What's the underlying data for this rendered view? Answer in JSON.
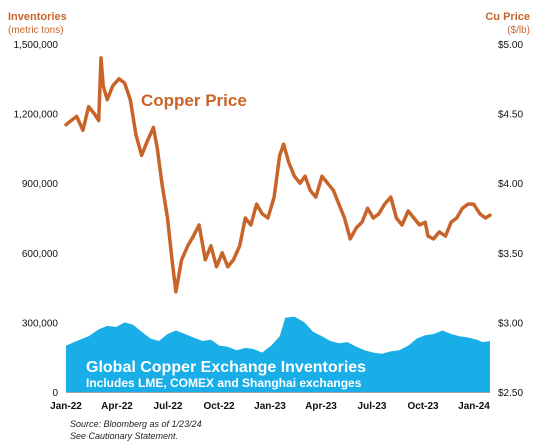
{
  "chart_data": {
    "type": "line",
    "left_axis": {
      "title": "Inventories",
      "subtitle": "(metric tons)",
      "ticks": [
        0,
        300000,
        600000,
        900000,
        1200000,
        1500000
      ],
      "tick_labels": [
        "0",
        "300,000",
        "600,000",
        "900,000",
        "1,200,000",
        "1,500,000"
      ],
      "range": [
        0,
        1500000
      ]
    },
    "right_axis": {
      "title": "Cu Price",
      "subtitle": "($/lb)",
      "ticks": [
        2.5,
        3.0,
        3.5,
        4.0,
        4.5,
        5.0
      ],
      "tick_labels": [
        "$2.50",
        "$3.00",
        "$3.50",
        "$4.00",
        "$4.50",
        "$5.00"
      ],
      "range": [
        2.5,
        5.0
      ]
    },
    "x_axis": {
      "tick_labels": [
        "Jan-22",
        "Apr-22",
        "Jul-22",
        "Oct-22",
        "Jan-23",
        "Apr-23",
        "Jul-23",
        "Oct-23",
        "Jan-24"
      ],
      "range": [
        "2022-01-01",
        "2024-01-23"
      ]
    },
    "series": [
      {
        "name": "Copper Price",
        "axis": "right",
        "color": "#C8642A",
        "points": [
          [
            "2022-01-01",
            4.42
          ],
          [
            "2022-01-10",
            4.45
          ],
          [
            "2022-01-20",
            4.48
          ],
          [
            "2022-01-31",
            4.38
          ],
          [
            "2022-02-10",
            4.55
          ],
          [
            "2022-02-20",
            4.5
          ],
          [
            "2022-02-28",
            4.45
          ],
          [
            "2022-03-04",
            4.9
          ],
          [
            "2022-03-08",
            4.7
          ],
          [
            "2022-03-15",
            4.6
          ],
          [
            "2022-03-25",
            4.7
          ],
          [
            "2022-04-05",
            4.75
          ],
          [
            "2022-04-15",
            4.72
          ],
          [
            "2022-04-25",
            4.6
          ],
          [
            "2022-05-05",
            4.35
          ],
          [
            "2022-05-15",
            4.2
          ],
          [
            "2022-05-25",
            4.3
          ],
          [
            "2022-06-05",
            4.4
          ],
          [
            "2022-06-12",
            4.25
          ],
          [
            "2022-06-20",
            4.0
          ],
          [
            "2022-06-30",
            3.75
          ],
          [
            "2022-07-08",
            3.45
          ],
          [
            "2022-07-15",
            3.22
          ],
          [
            "2022-07-25",
            3.45
          ],
          [
            "2022-08-05",
            3.55
          ],
          [
            "2022-08-15",
            3.62
          ],
          [
            "2022-08-25",
            3.7
          ],
          [
            "2022-09-05",
            3.45
          ],
          [
            "2022-09-15",
            3.55
          ],
          [
            "2022-09-25",
            3.4
          ],
          [
            "2022-10-05",
            3.5
          ],
          [
            "2022-10-15",
            3.4
          ],
          [
            "2022-10-25",
            3.45
          ],
          [
            "2022-11-05",
            3.55
          ],
          [
            "2022-11-15",
            3.75
          ],
          [
            "2022-11-25",
            3.7
          ],
          [
            "2022-12-05",
            3.85
          ],
          [
            "2022-12-15",
            3.78
          ],
          [
            "2022-12-25",
            3.75
          ],
          [
            "2023-01-05",
            3.9
          ],
          [
            "2023-01-15",
            4.2
          ],
          [
            "2023-01-22",
            4.28
          ],
          [
            "2023-01-31",
            4.15
          ],
          [
            "2023-02-10",
            4.05
          ],
          [
            "2023-02-20",
            4.0
          ],
          [
            "2023-03-01",
            4.05
          ],
          [
            "2023-03-10",
            3.95
          ],
          [
            "2023-03-20",
            3.9
          ],
          [
            "2023-03-31",
            4.05
          ],
          [
            "2023-04-10",
            4.0
          ],
          [
            "2023-04-20",
            3.95
          ],
          [
            "2023-04-30",
            3.85
          ],
          [
            "2023-05-10",
            3.75
          ],
          [
            "2023-05-20",
            3.6
          ],
          [
            "2023-05-31",
            3.68
          ],
          [
            "2023-06-10",
            3.72
          ],
          [
            "2023-06-20",
            3.82
          ],
          [
            "2023-06-30",
            3.75
          ],
          [
            "2023-07-10",
            3.78
          ],
          [
            "2023-07-20",
            3.85
          ],
          [
            "2023-07-31",
            3.9
          ],
          [
            "2023-08-10",
            3.75
          ],
          [
            "2023-08-20",
            3.7
          ],
          [
            "2023-08-31",
            3.8
          ],
          [
            "2023-09-10",
            3.75
          ],
          [
            "2023-09-20",
            3.7
          ],
          [
            "2023-09-30",
            3.72
          ],
          [
            "2023-10-05",
            3.62
          ],
          [
            "2023-10-15",
            3.6
          ],
          [
            "2023-10-25",
            3.65
          ],
          [
            "2023-11-05",
            3.62
          ],
          [
            "2023-11-15",
            3.72
          ],
          [
            "2023-11-25",
            3.75
          ],
          [
            "2023-12-05",
            3.82
          ],
          [
            "2023-12-15",
            3.85
          ],
          [
            "2023-12-25",
            3.85
          ],
          [
            "2024-01-05",
            3.78
          ],
          [
            "2024-01-15",
            3.75
          ],
          [
            "2024-01-23",
            3.77
          ]
        ]
      },
      {
        "name": "Global Copper Exchange Inventories",
        "axis": "left",
        "color": "#1AAEE8",
        "points": [
          [
            "2022-01-01",
            200000
          ],
          [
            "2022-01-20",
            220000
          ],
          [
            "2022-02-10",
            240000
          ],
          [
            "2022-02-28",
            270000
          ],
          [
            "2022-03-15",
            285000
          ],
          [
            "2022-03-31",
            280000
          ],
          [
            "2022-04-15",
            300000
          ],
          [
            "2022-04-30",
            290000
          ],
          [
            "2022-05-15",
            260000
          ],
          [
            "2022-05-31",
            230000
          ],
          [
            "2022-06-15",
            220000
          ],
          [
            "2022-06-30",
            250000
          ],
          [
            "2022-07-15",
            265000
          ],
          [
            "2022-07-31",
            250000
          ],
          [
            "2022-08-15",
            235000
          ],
          [
            "2022-08-31",
            220000
          ],
          [
            "2022-09-15",
            225000
          ],
          [
            "2022-09-30",
            200000
          ],
          [
            "2022-10-15",
            195000
          ],
          [
            "2022-10-31",
            180000
          ],
          [
            "2022-11-15",
            190000
          ],
          [
            "2022-11-30",
            185000
          ],
          [
            "2022-12-15",
            170000
          ],
          [
            "2022-12-31",
            200000
          ],
          [
            "2023-01-15",
            240000
          ],
          [
            "2023-01-25",
            320000
          ],
          [
            "2023-02-10",
            325000
          ],
          [
            "2023-02-28",
            300000
          ],
          [
            "2023-03-15",
            260000
          ],
          [
            "2023-03-31",
            240000
          ],
          [
            "2023-04-15",
            220000
          ],
          [
            "2023-04-30",
            210000
          ],
          [
            "2023-05-15",
            215000
          ],
          [
            "2023-05-31",
            195000
          ],
          [
            "2023-06-15",
            180000
          ],
          [
            "2023-06-30",
            170000
          ],
          [
            "2023-07-15",
            165000
          ],
          [
            "2023-07-31",
            175000
          ],
          [
            "2023-08-15",
            180000
          ],
          [
            "2023-08-31",
            200000
          ],
          [
            "2023-09-15",
            230000
          ],
          [
            "2023-09-30",
            245000
          ],
          [
            "2023-10-15",
            250000
          ],
          [
            "2023-10-31",
            265000
          ],
          [
            "2023-11-15",
            250000
          ],
          [
            "2023-11-30",
            240000
          ],
          [
            "2023-12-15",
            235000
          ],
          [
            "2023-12-31",
            225000
          ],
          [
            "2024-01-10",
            215000
          ],
          [
            "2024-01-23",
            220000
          ]
        ]
      }
    ],
    "annotations": {
      "price_label": "Copper Price",
      "inventory_title": "Global Copper Exchange Inventories",
      "inventory_subtitle": "Includes LME, COMEX and Shanghai exchanges"
    },
    "grid": false,
    "legend": "none"
  },
  "footer": {
    "source": "Source: Bloomberg as of 1/23/24",
    "disclaimer": "See Cautionary Statement."
  },
  "colors": {
    "axis_title": "#C8642A",
    "price_line": "#C8642A",
    "inventory_fill": "#1AAEE8",
    "annotation_text": "#FFFFFF"
  }
}
